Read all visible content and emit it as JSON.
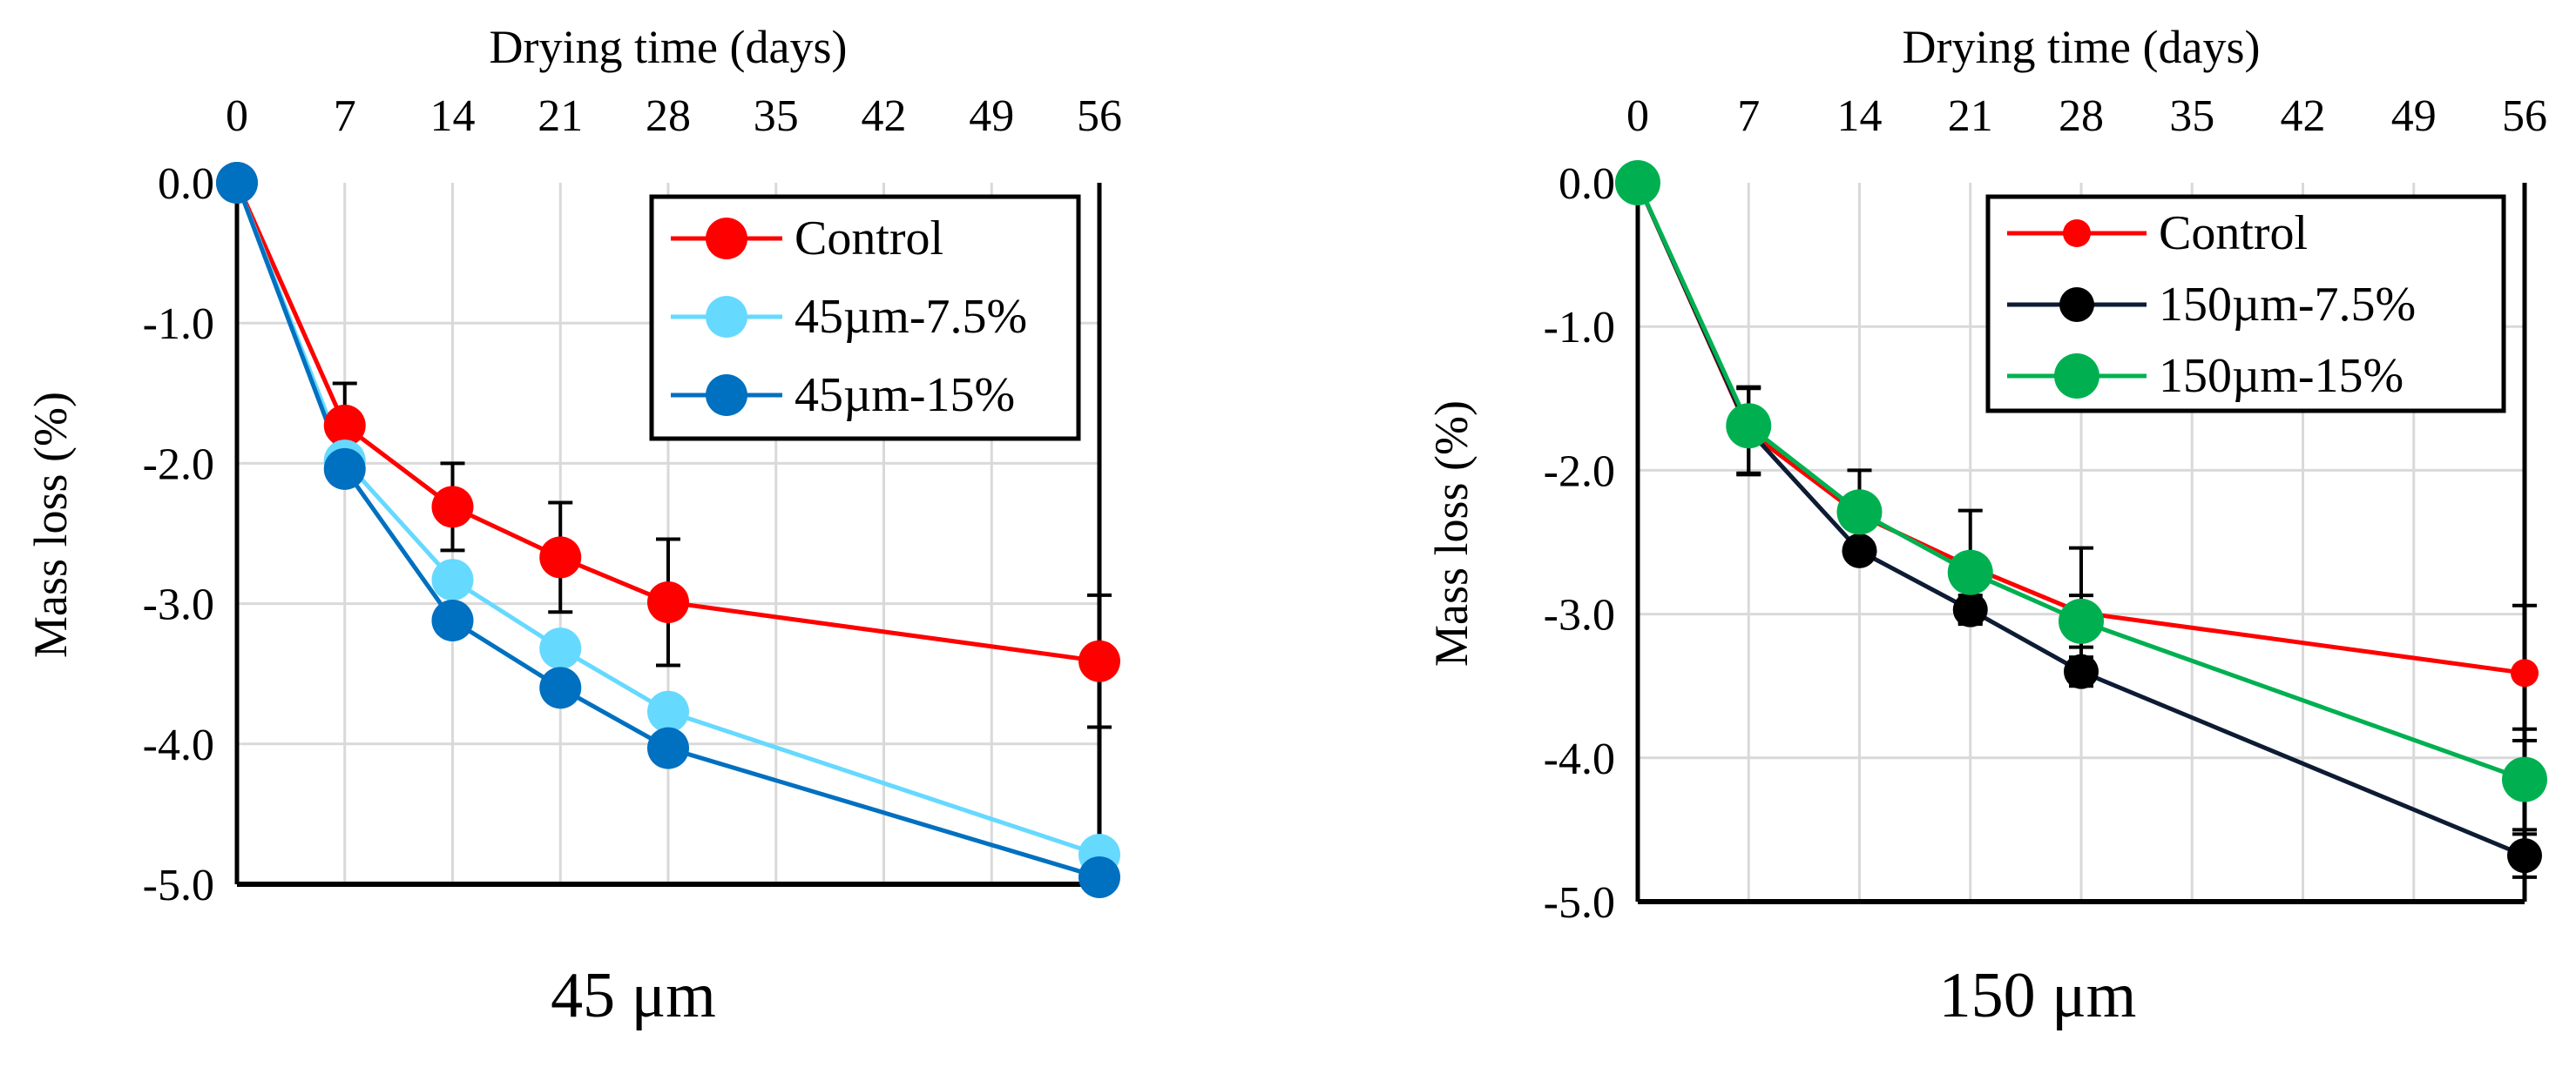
{
  "chart_data": [
    {
      "type": "line",
      "title": "45 μm",
      "xlabel": "Drying time (days)",
      "ylabel": "Mass loss (%)",
      "xlim": [
        0,
        56
      ],
      "ylim": [
        -5.0,
        0.0
      ],
      "xticks": [
        "0",
        "7",
        "14",
        "21",
        "28",
        "35",
        "42",
        "49",
        "56"
      ],
      "yticks": [
        "0.0",
        "-1.0",
        "-2.0",
        "-3.0",
        "-4.0",
        "-5.0"
      ],
      "x": [
        0,
        7,
        14,
        21,
        28,
        56
      ],
      "grid": true,
      "legend_position": "top-right",
      "series": [
        {
          "name": "Control",
          "color": "#ff0000",
          "values": [
            0.0,
            -1.73,
            -2.31,
            -2.67,
            -2.99,
            -3.41
          ],
          "error": [
            0,
            0.3,
            0.31,
            0.39,
            0.45,
            0.47
          ]
        },
        {
          "name": "45µm-7.5%",
          "color": "#66d9ff",
          "values": [
            0.0,
            -1.98,
            -2.83,
            -3.32,
            -3.77,
            -4.79
          ],
          "error": [
            0,
            0,
            0,
            0,
            0,
            0
          ]
        },
        {
          "name": "45µm-15%",
          "color": "#0070c0",
          "values": [
            0.0,
            -2.04,
            -3.12,
            -3.6,
            -4.03,
            -4.95
          ],
          "error": [
            0,
            0,
            0,
            0,
            0,
            0
          ]
        }
      ]
    },
    {
      "type": "line",
      "title": "150 μm",
      "xlabel": "Drying time (days)",
      "ylabel": "Mass loss (%)",
      "xlim": [
        0,
        56
      ],
      "ylim": [
        -5.0,
        0.0
      ],
      "xticks": [
        "0",
        "7",
        "14",
        "21",
        "28",
        "35",
        "42",
        "49",
        "56"
      ],
      "yticks": [
        "0.0",
        "-1.0",
        "-2.0",
        "-3.0",
        "-4.0",
        "-5.0"
      ],
      "x": [
        0,
        7,
        14,
        21,
        28,
        56
      ],
      "grid": true,
      "legend_position": "top-right",
      "series": [
        {
          "name": "Control",
          "color": "#ff0000",
          "values": [
            0.0,
            -1.73,
            -2.31,
            -2.67,
            -2.99,
            -3.41
          ],
          "error": [
            0,
            0.3,
            0.31,
            0.39,
            0.45,
            0.47
          ]
        },
        {
          "name": "150µm-7.5%",
          "color": "#000000",
          "lineColor": "#0d1b33",
          "values": [
            0.0,
            -1.72,
            -2.56,
            -2.97,
            -3.4,
            -4.68
          ],
          "error": [
            0,
            0.3,
            0,
            0.1,
            0.1,
            0.15
          ]
        },
        {
          "name": "150µm-15%",
          "color": "#00b050",
          "values": [
            0.0,
            -1.69,
            -2.29,
            -2.71,
            -3.05,
            -4.15
          ],
          "error": [
            0,
            0,
            0,
            0,
            0.18,
            0.35
          ]
        }
      ]
    }
  ]
}
